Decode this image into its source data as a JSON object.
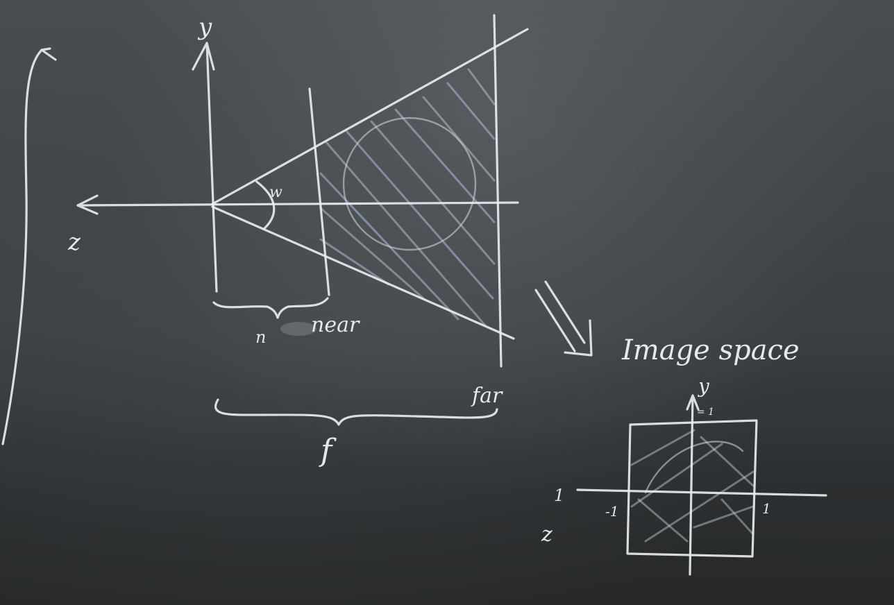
{
  "board": {
    "axis_y_label": "y",
    "axis_z_label": "z",
    "angle_label": "w",
    "near_prefix": "n",
    "near_label": "near",
    "far_label": "far",
    "focal_label": "f",
    "caption": "Image space",
    "ndc_y_label": "y",
    "ndc_y_small": "= 1",
    "ndc_x_neg": "1",
    "ndc_z_label": "z",
    "ndc_neg_one": "-1",
    "ndc_pos_one": "1"
  }
}
